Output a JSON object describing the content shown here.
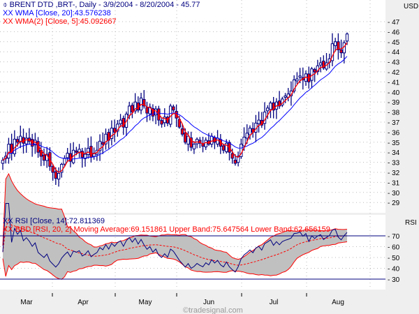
{
  "title": "BRENT DTD ,BRT-, Daily - 3/9/2004 - 8/20/2004 - 45.77",
  "legend": {
    "wma20": "WMA [Close, 20]:43.576238",
    "wma5": "WMA(2) [Close, 5]:45.092667",
    "rsi": "RSI [Close, 14]:72.811369",
    "bbd": "BBD [RSI, 20, 2] Moving Average:69.151861 Upper Band:75.647564 Lower Band:62.656159",
    "marker": "XX"
  },
  "price_unit": "USD",
  "rsi_unit": "RSI",
  "watermark": "©tradesignal.com",
  "colors": {
    "wma20": "#0000ff",
    "wma5": "#ff0000",
    "rsi": "#000080",
    "band": "#ff0000",
    "band_fill": "#c0c0c0",
    "candle_outline": "#000080",
    "down_body": "#ff0000",
    "up_body": "#ffffff"
  },
  "chart_data": [
    {
      "type": "candlestick",
      "title": "BRENT DTD ,BRT-, Daily",
      "ylabel": "USD",
      "ylim": [
        28,
        47
      ],
      "y_ticks": [
        29,
        30,
        31,
        32,
        33,
        34,
        35,
        36,
        37,
        38,
        39,
        40,
        41,
        42,
        43,
        44,
        45,
        46,
        47
      ],
      "x_ticks": [
        "Mar",
        "Apr",
        "May",
        "Jun",
        "Jul",
        "Aug"
      ],
      "close": [
        33.2,
        33.6,
        34.8,
        33.9,
        35.3,
        35.0,
        35.6,
        34.9,
        35.4,
        35.1,
        34.6,
        35.2,
        34.0,
        33.6,
        33.2,
        33.8,
        32.6,
        32.0,
        31.4,
        31.9,
        32.8,
        33.4,
        33.9,
        33.1,
        34.2,
        34.0,
        34.3,
        33.5,
        33.8,
        34.4,
        33.5,
        33.9,
        34.2,
        35.1,
        34.8,
        35.8,
        35.2,
        36.4,
        36.0,
        36.8,
        37.2,
        36.5,
        37.8,
        38.6,
        38.0,
        39.0,
        38.2,
        39.4,
        38.6,
        37.9,
        38.5,
        37.6,
        38.3,
        37.2,
        36.8,
        37.5,
        36.9,
        38.6,
        38.2,
        37.4,
        36.5,
        35.8,
        35.0,
        35.6,
        34.5,
        34.8,
        35.3,
        34.9,
        34.6,
        35.2,
        34.8,
        35.6,
        35.0,
        35.4,
        34.6,
        34.2,
        34.9,
        34.0,
        33.4,
        32.9,
        33.6,
        34.8,
        35.5,
        35.9,
        36.4,
        36.0,
        36.9,
        37.2,
        36.7,
        38.0,
        38.4,
        38.9,
        38.2,
        39.0,
        38.6,
        39.3,
        39.6,
        39.8,
        40.1,
        41.2,
        41.3,
        41.6,
        41.2,
        41.8,
        41.0,
        42.3,
        42.0,
        42.6,
        42.9,
        42.4,
        42.9,
        43.3,
        44.8,
        45.0,
        44.2,
        43.9,
        44.9,
        45.77
      ],
      "series": [
        {
          "name": "WMA [Close, 20]",
          "last": 43.576238
        },
        {
          "name": "WMA(2) [Close, 5]",
          "last": 45.092667
        }
      ]
    },
    {
      "type": "line",
      "title": "RSI [Close, 14] with BBD [RSI, 20, 2]",
      "ylabel": "RSI",
      "ylim": [
        23,
        78
      ],
      "y_ticks": [
        30,
        40,
        50,
        60,
        70
      ],
      "reference_lines": [
        70,
        30
      ],
      "last": {
        "rsi": 72.811369,
        "ma": 69.151861,
        "upper": 75.647564,
        "lower": 62.656159
      }
    }
  ]
}
